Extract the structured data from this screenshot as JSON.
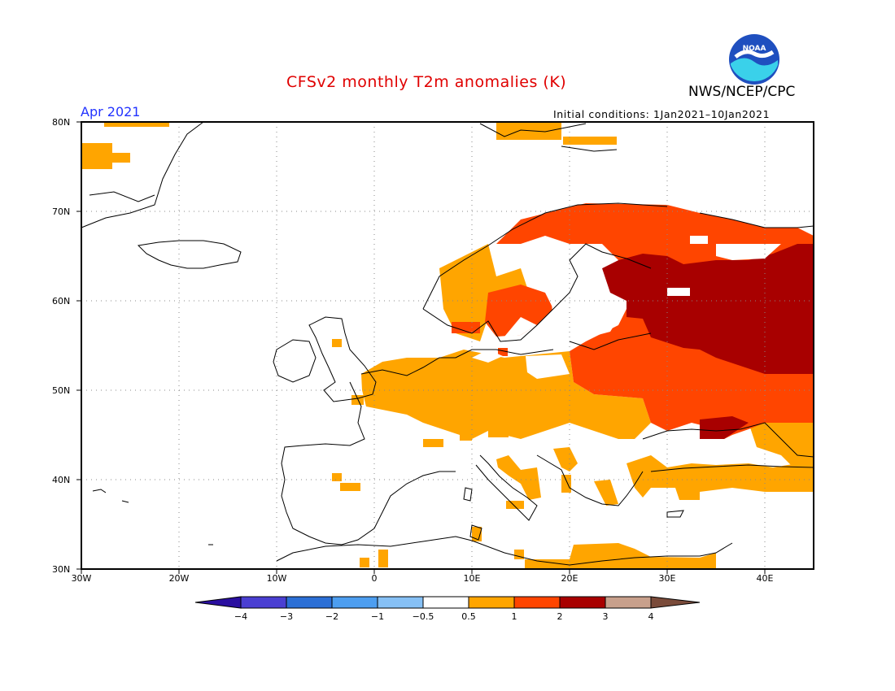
{
  "header": {
    "title": "CFSv2 monthly T2m anomalies (K)",
    "agency": "NWS/NCEP/CPC",
    "valid_month": "Apr 2021",
    "initial_conditions": "Initial conditions: 1Jan2021–10Jan2021",
    "logo_text": "NOAA"
  },
  "map": {
    "region": "Europe",
    "projection": "lat-lon",
    "lon_range": [
      -30,
      45
    ],
    "lat_range": [
      30,
      80
    ],
    "grid": "dotted",
    "lat_labels": [
      "80N",
      "70N",
      "60N",
      "50N",
      "40N",
      "30N"
    ],
    "lon_labels": [
      "30W",
      "20W",
      "10W",
      "0",
      "10E",
      "20E",
      "30E",
      "40E"
    ]
  },
  "colorbar": {
    "labels": [
      "−4",
      "−3",
      "−2",
      "−1",
      "−0.5",
      "0.5",
      "1",
      "2",
      "3",
      "4"
    ],
    "colors": [
      "#2a0fa0",
      "#4a3fd2",
      "#2b6fd6",
      "#4d9ef0",
      "#86c0f5",
      "#ffffff",
      "#ffa500",
      "#ff4500",
      "#a80000",
      "#c8a08c",
      "#7a4b3a"
    ]
  }
}
